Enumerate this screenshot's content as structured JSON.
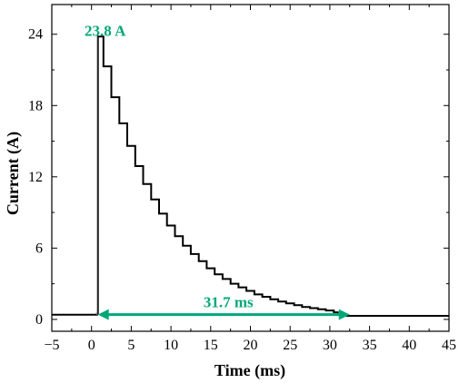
{
  "chart_data": {
    "type": "line",
    "title": "",
    "xlabel": "Time (ms)",
    "ylabel": "Current (A)",
    "xlim": [
      -5,
      45
    ],
    "ylim": [
      -1,
      26.5
    ],
    "xticks": [
      -5,
      0,
      5,
      10,
      15,
      20,
      25,
      30,
      35,
      40,
      45
    ],
    "xtick_labels": [
      "−5",
      "0",
      "5",
      "10",
      "15",
      "20",
      "25",
      "30",
      "35",
      "40",
      "45"
    ],
    "yticks": [
      0,
      6,
      12,
      18,
      24
    ],
    "ytick_labels": [
      "0",
      "6",
      "12",
      "18",
      "24"
    ],
    "grid": false,
    "series": [
      {
        "color": "#000000",
        "x": [
          -5,
          -2,
          0,
          0.7,
          0.8,
          1.5,
          2.5,
          3.5,
          4.5,
          5.5,
          6.5,
          7.5,
          8.5,
          9.5,
          10.5,
          11.5,
          12.5,
          13.5,
          14.5,
          15.5,
          16.5,
          17.5,
          18.5,
          19.5,
          20.5,
          21.5,
          22.5,
          23.5,
          24.5,
          25.5,
          26.5,
          27.5,
          28.5,
          29.5,
          30.5,
          31.0,
          31.5,
          33,
          35,
          40,
          45
        ],
        "y": [
          0.4,
          0.4,
          0.4,
          0.5,
          23.8,
          21.3,
          18.7,
          16.5,
          14.6,
          12.9,
          11.4,
          10.1,
          8.9,
          7.9,
          7.0,
          6.2,
          5.5,
          4.9,
          4.3,
          3.8,
          3.4,
          3.0,
          2.7,
          2.4,
          2.1,
          1.9,
          1.7,
          1.5,
          1.35,
          1.2,
          1.05,
          0.95,
          0.85,
          0.75,
          0.6,
          0.4,
          0.3,
          0.3,
          0.3,
          0.3,
          0.3
        ]
      }
    ],
    "annotations": [
      {
        "text": "23.8 A",
        "x": 0.8,
        "y": 23.8,
        "color": "#00a878"
      },
      {
        "text": "31.7 ms",
        "from_x": 0.8,
        "to_x": 32.5,
        "y": 0.4,
        "color": "#00a878"
      }
    ]
  }
}
